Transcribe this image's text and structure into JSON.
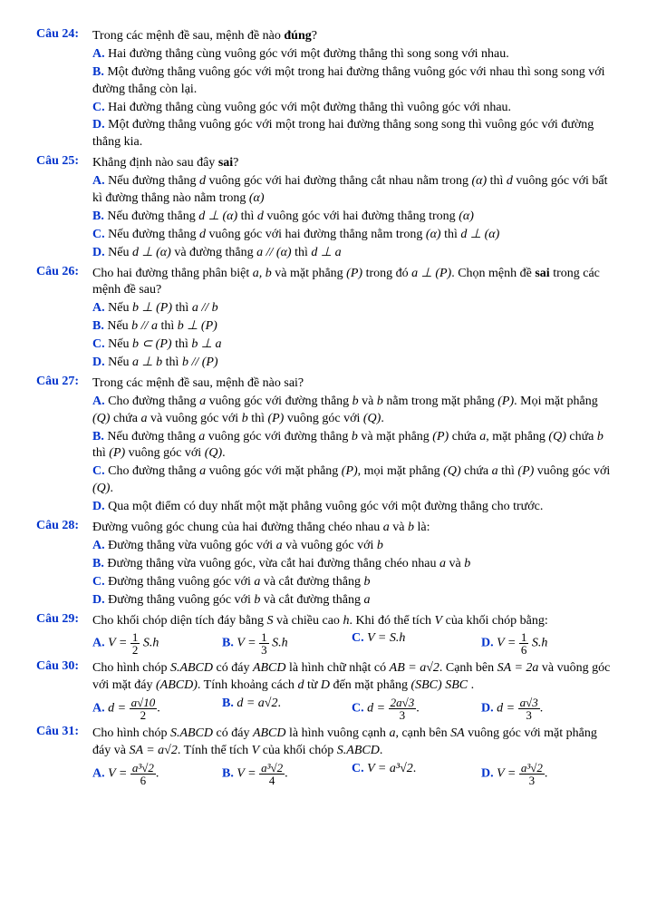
{
  "q24": {
    "label": "Câu 24:",
    "stem": "Trong các mệnh đề sau, mệnh đề nào ",
    "stem_bold": "đúng",
    "stem_end": "?",
    "A": "Hai đường thẳng cùng vuông góc với một đường thẳng thì song song với nhau.",
    "B": "Một đường thẳng vuông góc với một trong hai đường thẳng vuông góc với nhau thì song song với đường thẳng còn lại.",
    "C": "Hai đường thẳng cùng vuông góc với một đường thẳng thì vuông góc với nhau.",
    "D": "Một đường thẳng vuông góc với một trong hai đường thẳng song song thì vuông góc với đường thẳng kia."
  },
  "q25": {
    "label": "Câu 25:",
    "stem_a": "Khẳng định nào sau đây ",
    "stem_bold": "sai",
    "stem_b": "?",
    "A1": "Nếu đường thẳng ",
    "A_d": "d",
    "A2": " vuông góc với hai đường thẳng cắt nhau nằm trong ",
    "A_alpha": "(α)",
    "A3": " thì ",
    "A_d2": "d",
    "A4": " vuông góc với bất kì đường thẳng nào nằm trong ",
    "A_alpha2": "(α)",
    "B1": "Nếu đường thẳng ",
    "B_math": "d ⊥ (α)",
    "B2": " thì ",
    "B_d": "d",
    "B3": " vuông góc với hai đường thẳng trong ",
    "B_alpha": "(α)",
    "C1": "Nếu đường thẳng ",
    "C_d": "d",
    "C2": " vuông góc với hai đường thẳng nằm trong ",
    "C_alpha": "(α)",
    "C3": " thì ",
    "C_math": "d ⊥ (α)",
    "D1": "Nếu ",
    "D_math1": "d ⊥ (α)",
    "D2": " và đường thẳng ",
    "D_math2": "a // (α)",
    "D3": " thì ",
    "D_math3": "d ⊥ a"
  },
  "q26": {
    "label": "Câu 26:",
    "stem1": "Cho hai đường thẳng phân biệt ",
    "stem_ab": "a, b",
    "stem2": " và mặt phẳng ",
    "stem_P": "(P)",
    "stem3": " trong đó ",
    "stem_math": "a ⊥ (P)",
    "stem4": ". Chọn mệnh đề ",
    "stem_bold": "sai",
    "stem5": " trong các mệnh đề sau?",
    "A1": "Nếu ",
    "A_m1": "b ⊥ (P)",
    "A2": " thì ",
    "A_m2": "a // b",
    "B1": "Nếu ",
    "B_m1": "b // a",
    "B2": " thì ",
    "B_m2": "b ⊥ (P)",
    "C1": "Nếu ",
    "C_m1": "b ⊂ (P)",
    "C2": " thì ",
    "C_m2": "b ⊥ a",
    "D1": "Nếu ",
    "D_m1": "a ⊥ b",
    "D2": " thì ",
    "D_m2": "b // (P)"
  },
  "q27": {
    "label": "Câu 27:",
    "stem": "Trong các mệnh đề sau, mệnh đề nào sai?",
    "A1": "Cho đường thẳng ",
    "A_a": "a",
    "A2": " vuông góc với đường thẳng ",
    "A_b": "b",
    "A3": " và ",
    "A_b2": "b",
    "A4": " nằm trong mặt phẳng ",
    "A_P": "(P)",
    "A5": ". Mọi mặt phẳng ",
    "A_Q": "(Q)",
    "A6": " chứa ",
    "A_a2": "a",
    "A7": " và vuông góc với ",
    "A_b3": "b",
    "A8": " thì ",
    "A_P2": "(P)",
    "A9": " vuông góc với ",
    "A_Q2": "(Q)",
    "A10": ".",
    "B1": "Nếu đường thẳng ",
    "B_a": "a",
    "B2": " vuông góc với đường thẳng ",
    "B_b": "b",
    "B3": " và mặt phẳng ",
    "B_P": "(P)",
    "B4": " chứa ",
    "B_a2": "a",
    "B5": ", mặt phẳng ",
    "B_Q": "(Q)",
    "B6": " chứa ",
    "B_b2": "b",
    "B7": " thì ",
    "B_P2": "(P)",
    "B8": " vuông góc với ",
    "B_Q2": "(Q)",
    "B9": ".",
    "C1": "Cho đường thẳng ",
    "C_a": "a",
    "C2": " vuông góc với mặt phẳng ",
    "C_P": "(P)",
    "C3": ", mọi mặt phẳng ",
    "C_Q": "(Q)",
    "C4": " chứa ",
    "C_a2": "a",
    "C5": " thì ",
    "C_P2": "(P)",
    "C6": " vuông góc với ",
    "C_Q2": "(Q)",
    "C7": ".",
    "D": "Qua một điểm có duy nhất một mặt phẳng vuông góc với một đường thẳng cho trước."
  },
  "q28": {
    "label": "Câu 28:",
    "stem": "Đường vuông góc chung của hai đường thẳng chéo nhau ",
    "stem_a": "a",
    "stem_and": " và ",
    "stem_b": "b",
    "stem_end": " là:",
    "A": "Đường thẳng vừa vuông góc với ",
    "A_a": "a",
    "A2": " và vuông góc với ",
    "A_b": "b",
    "B": "Đường thẳng vừa vuông góc, vừa cắt hai đường thẳng chéo nhau ",
    "B_a": "a",
    "B_and": " và ",
    "B_b": "b",
    "C": "Đường thẳng vuông góc với ",
    "C_a": "a",
    "C2": " và cắt đường thẳng ",
    "C_b": "b",
    "D": "Đường thẳng vuông góc với ",
    "D_b": "b",
    "D2": " và cắt đường thẳng ",
    "D_a": "a"
  },
  "q29": {
    "label": "Câu 29:",
    "stem1": "Cho khối chóp diện tích đáy bằng ",
    "stem_S": "S",
    "stem2": " và chiều cao ",
    "stem_h": "h",
    "stem3": ". Khi đó thể tích ",
    "stem_V": "V",
    "stem4": " của khối chóp bằng:",
    "A_pre": "V = ",
    "A_num": "1",
    "A_den": "2",
    "A_post": " S.h",
    "B_pre": "V = ",
    "B_num": "1",
    "B_den": "3",
    "B_post": " S.h",
    "C": "V = S.h",
    "D_pre": "V = ",
    "D_num": "1",
    "D_den": "6",
    "D_post": " S.h"
  },
  "q30": {
    "label": "Câu 30:",
    "stem1": "Cho hình chóp ",
    "stem_S": "S.ABCD",
    "stem2": " có đáy ",
    "stem_ABCD": "ABCD",
    "stem3": " là hình chữ nhật có ",
    "stem_AB": "AB = a√2",
    "stem4": ". Cạnh bên ",
    "stem_SA": "SA = 2a",
    "stem5": " và vuông góc với mặt đáy ",
    "stem_ABCD2": "(ABCD)",
    "stem6": ". Tính khoảng cách ",
    "stem_d": "d",
    "stem7": " từ ",
    "stem_D": "D",
    "stem8": " đến mặt phẳng ",
    "stem_SBC": "(SBC)",
    "stem9": " ",
    "stem_SBC2": "SBC",
    "stem10": " .",
    "A_pre": "d = ",
    "A_num": "a√10",
    "A_den": "2",
    "B": "d = a√2",
    "C_pre": "d = ",
    "C_num": "2a√3",
    "C_den": "3",
    "D_pre": "d = ",
    "D_num": "a√3",
    "D_den": "3"
  },
  "q31": {
    "label": "Câu 31:",
    "stem1": "Cho hình chóp ",
    "stem_S": "S.ABCD",
    "stem2": " có đáy ",
    "stem_ABCD": "ABCD",
    "stem3": " là hình vuông cạnh ",
    "stem_a": "a",
    "stem4": ", cạnh bên ",
    "stem_SA": "SA",
    "stem5": " vuông góc với mặt phẳng đáy và ",
    "stem_SAeq": "SA = a√2",
    "stem6": ". Tính thể tích ",
    "stem_V": "V",
    "stem7": " của khối chóp ",
    "stem_S2": "S.ABCD",
    "stem8": ".",
    "A_pre": "V = ",
    "A_num": "a³√2",
    "A_den": "6",
    "B_pre": "V = ",
    "B_num": "a³√2",
    "B_den": "4",
    "C": "V = a³√2",
    "D_pre": "V = ",
    "D_num": "a³√2",
    "D_den": "3"
  },
  "labels": {
    "A": "A.",
    "B": "B.",
    "C": "C.",
    "D": "D."
  }
}
